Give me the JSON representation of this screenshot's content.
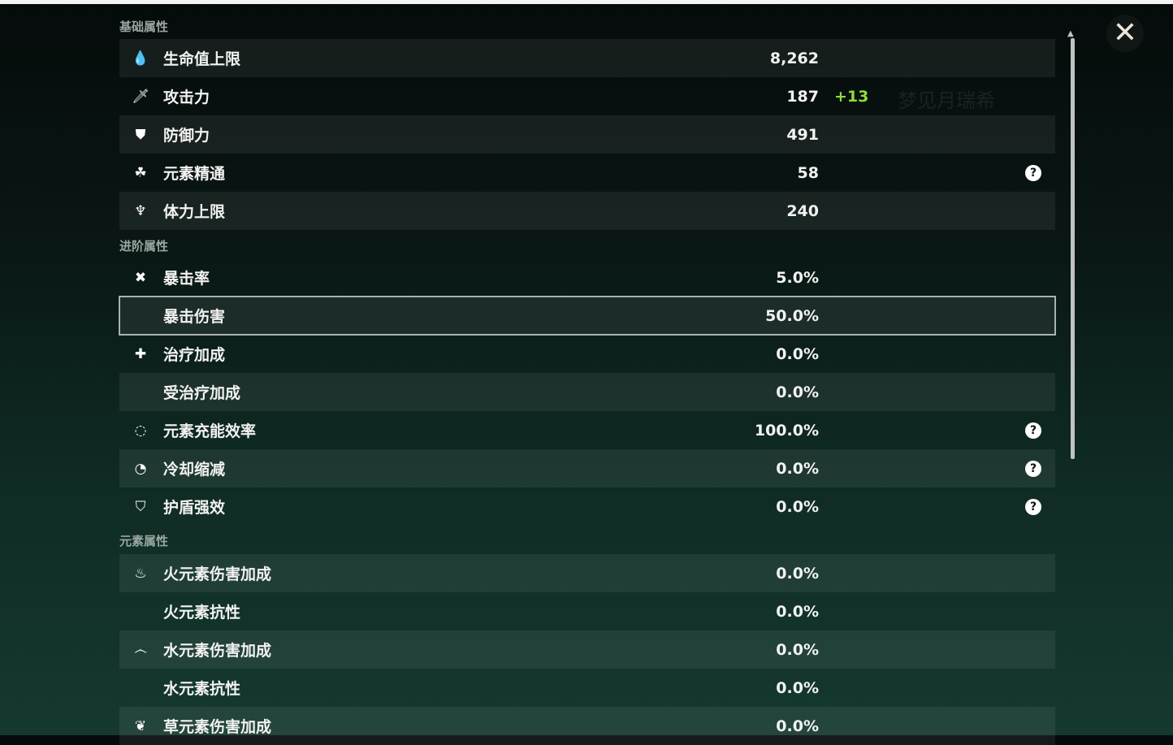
{
  "background": {
    "character_name": "梦见月瑞希"
  },
  "sections": [
    {
      "title": "基础属性",
      "rows": [
        {
          "icon": "hp-drop-icon",
          "glyph": "💧",
          "label": "生命值上限",
          "value": "8,262"
        },
        {
          "icon": "sword-icon",
          "glyph": "🗡",
          "label": "攻击力",
          "value": "187",
          "bonus": "+13"
        },
        {
          "icon": "shield-icon",
          "glyph": "⛊",
          "label": "防御力",
          "value": "491"
        },
        {
          "icon": "elemental-mastery-icon",
          "glyph": "☘",
          "label": "元素精通",
          "value": "58",
          "help": "?"
        },
        {
          "icon": "stamina-icon",
          "glyph": "♆",
          "label": "体力上限",
          "value": "240"
        }
      ]
    },
    {
      "title": "进阶属性",
      "rows": [
        {
          "icon": "crit-rate-icon",
          "glyph": "✖",
          "label": "暴击率",
          "value": "5.0%"
        },
        {
          "icon": "crit-dmg-icon",
          "glyph": "",
          "label": "暴击伤害",
          "value": "50.0%",
          "selected": true
        },
        {
          "icon": "healing-cross-icon",
          "glyph": "✚",
          "label": "治疗加成",
          "value": "0.0%"
        },
        {
          "icon": "",
          "glyph": "",
          "label": "受治疗加成",
          "value": "0.0%"
        },
        {
          "icon": "energy-recharge-icon",
          "glyph": "◌",
          "label": "元素充能效率",
          "value": "100.0%",
          "help": "?"
        },
        {
          "icon": "cooldown-icon",
          "glyph": "◔",
          "label": "冷却缩减",
          "value": "0.0%",
          "help": "?"
        },
        {
          "icon": "shield-strength-icon",
          "glyph": "⛉",
          "label": "护盾强效",
          "value": "0.0%",
          "help": "?"
        }
      ]
    },
    {
      "title": "元素属性",
      "rows": [
        {
          "icon": "pyro-icon",
          "glyph": "♨",
          "label": "火元素伤害加成",
          "value": "0.0%"
        },
        {
          "icon": "",
          "glyph": "",
          "label": "火元素抗性",
          "value": "0.0%"
        },
        {
          "icon": "hydro-icon",
          "glyph": "෴",
          "label": "水元素伤害加成",
          "value": "0.0%"
        },
        {
          "icon": "",
          "glyph": "",
          "label": "水元素抗性",
          "value": "0.0%"
        },
        {
          "icon": "dendro-icon",
          "glyph": "❦",
          "label": "草元素伤害加成",
          "value": "0.0%"
        }
      ]
    }
  ],
  "close": {
    "glyph": "✕"
  },
  "colors": {
    "bonus": "#8fdc3c",
    "selected_outline": "#a9b3b0"
  }
}
